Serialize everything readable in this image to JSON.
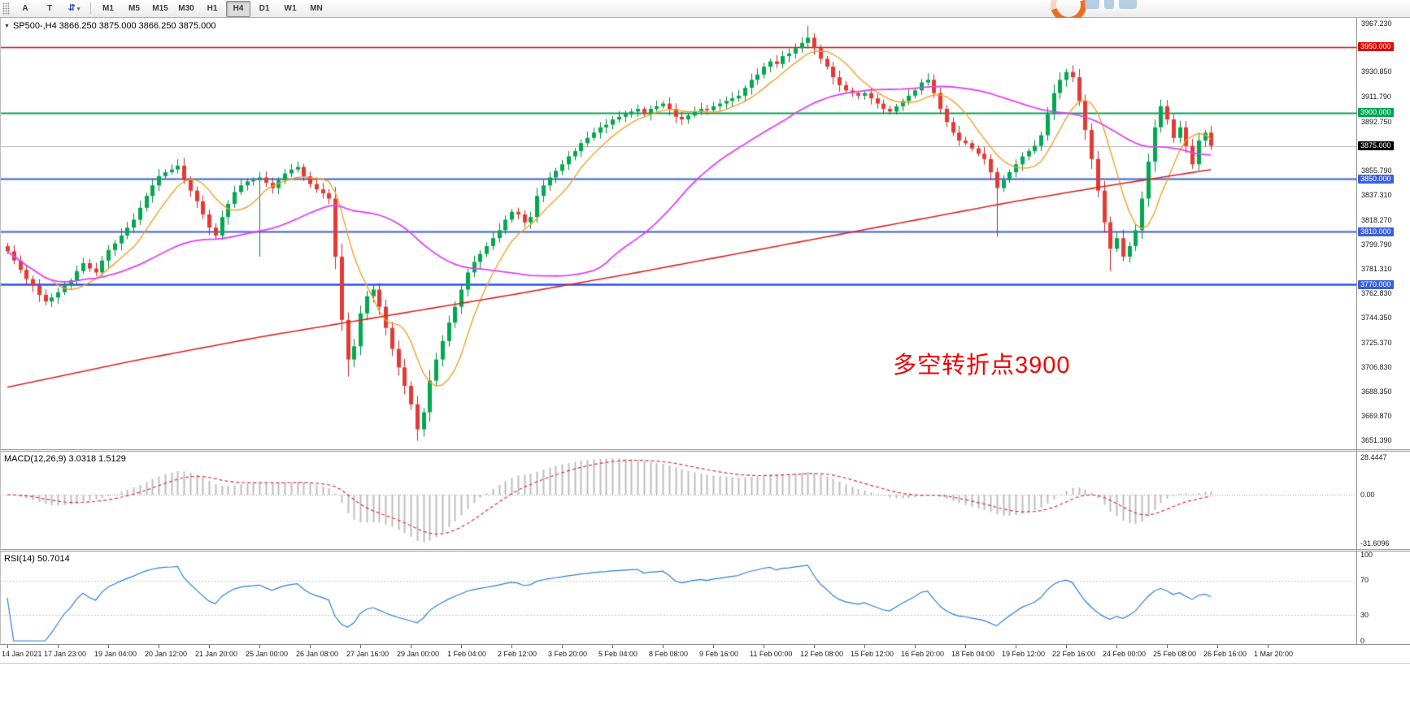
{
  "toolbar": {
    "a_label": "A",
    "t_label": "T",
    "arrows_icon": "⇵",
    "caret_icon": "▾",
    "timeframes": [
      "M1",
      "M5",
      "M15",
      "M30",
      "H1",
      "H4",
      "D1",
      "W1",
      "MN"
    ],
    "active_timeframe": "H4"
  },
  "chart": {
    "marker": "▼",
    "symbol_label": "SP500-,H4  3866.250 3875.000 3866.250 3875.000",
    "annotation": "多空转折点3900",
    "current_price": 3875.0,
    "y_min": 3645,
    "y_max": 3972,
    "price_axis": [
      {
        "t": "3967.230",
        "k": "tick"
      },
      {
        "t": "3950.000",
        "k": "red"
      },
      {
        "t": "3930.850",
        "k": "tick"
      },
      {
        "t": "3911.790",
        "k": "tick"
      },
      {
        "t": "3900.000",
        "k": "green"
      },
      {
        "t": "3892.750",
        "k": "tick"
      },
      {
        "t": "3875.000",
        "k": "black"
      },
      {
        "t": "3855.790",
        "k": "tick"
      },
      {
        "t": "3850.000",
        "k": "blue"
      },
      {
        "t": "3837.310",
        "k": "tick"
      },
      {
        "t": "3818.270",
        "k": "tick"
      },
      {
        "t": "3810.000",
        "k": "blue"
      },
      {
        "t": "3799.790",
        "k": "tick"
      },
      {
        "t": "3781.310",
        "k": "tick"
      },
      {
        "t": "3770.000",
        "k": "blue"
      },
      {
        "t": "3762.830",
        "k": "tick"
      },
      {
        "t": "3744.350",
        "k": "tick"
      },
      {
        "t": "3725.370",
        "k": "tick"
      },
      {
        "t": "3706.830",
        "k": "tick"
      },
      {
        "t": "3688.350",
        "k": "tick"
      },
      {
        "t": "3669.870",
        "k": "tick"
      },
      {
        "t": "3651.390",
        "k": "tick"
      }
    ],
    "levels": [
      {
        "price": 3950.0,
        "color": "#dd0400",
        "width": 1.5
      },
      {
        "price": 3900.0,
        "color": "#00a651",
        "width": 1.8
      },
      {
        "price": 3850.0,
        "color": "#3a5fd9",
        "width": 1.8
      },
      {
        "price": 3810.0,
        "color": "#3a5fd9",
        "width": 1.8
      },
      {
        "price": 3770.0,
        "color": "#2b50e8",
        "width": 2.4
      }
    ]
  },
  "macd": {
    "label": "MACD(12,26,9) 3.0318 1.5129",
    "axis_labels": [
      "28.4447",
      "0.00",
      "-31.6096"
    ]
  },
  "rsi": {
    "label": "RSI(14) 50.7014",
    "axis_labels": [
      "100",
      "70",
      "30",
      "0"
    ],
    "levels": [
      70,
      30
    ]
  },
  "time_axis": [
    "14 Jan 2021",
    "17 Jan 23:00",
    "19 Jan 04:00",
    "20 Jan 12:00",
    "21 Jan 20:00",
    "25 Jan 00:00",
    "26 Jan 08:00",
    "27 Jan 16:00",
    "29 Jan 00:00",
    "1 Feb 04:00",
    "2 Feb 12:00",
    "3 Feb 20:00",
    "5 Feb 04:00",
    "8 Feb 08:00",
    "9 Feb 16:00",
    "11 Feb 00:00",
    "12 Feb 08:00",
    "15 Feb 12:00",
    "16 Feb 20:00",
    "18 Feb 04:00",
    "19 Feb 12:00",
    "22 Feb 16:00",
    "24 Feb 00:00",
    "25 Feb 08:00",
    "26 Feb 16:00",
    "1 Mar 20:00"
  ],
  "chart_data": {
    "type": "candlestick",
    "symbol": "SP500-",
    "timeframe": "H4",
    "ohlc_current": {
      "open": 3866.25,
      "high": 3875.0,
      "low": 3866.25,
      "close": 3875.0
    },
    "closes": [
      3795,
      3788,
      3781,
      3774,
      3769,
      3762,
      3757,
      3760,
      3764,
      3769,
      3773,
      3780,
      3786,
      3782,
      3779,
      3788,
      3796,
      3801,
      3807,
      3813,
      3819,
      3828,
      3837,
      3845,
      3852,
      3855,
      3857,
      3860,
      3849,
      3841,
      3833,
      3823,
      3813,
      3807,
      3821,
      3831,
      3840,
      3845,
      3848,
      3849,
      3851,
      3847,
      3843,
      3849,
      3854,
      3857,
      3859,
      3852,
      3846,
      3842,
      3839,
      3835,
      3791,
      3743,
      3713,
      3723,
      3748,
      3761,
      3766,
      3753,
      3737,
      3721,
      3707,
      3693,
      3679,
      3660,
      3673,
      3697,
      3713,
      3727,
      3741,
      3753,
      3766,
      3779,
      3787,
      3793,
      3799,
      3805,
      3811,
      3819,
      3825,
      3823,
      3817,
      3821,
      3837,
      3845,
      3851,
      3856,
      3861,
      3867,
      3871,
      3877,
      3881,
      3885,
      3889,
      3891,
      3895,
      3897,
      3899,
      3901,
      3903,
      3899,
      3903,
      3905,
      3907,
      3903,
      3897,
      3895,
      3898,
      3901,
      3903,
      3902,
      3905,
      3907,
      3909,
      3911,
      3913,
      3919,
      3925,
      3929,
      3935,
      3939,
      3937,
      3943,
      3945,
      3949,
      3953,
      3957,
      3949,
      3941,
      3935,
      3927,
      3921,
      3917,
      3915,
      3913,
      3915,
      3911,
      3907,
      3903,
      3901,
      3905,
      3909,
      3913,
      3917,
      3923,
      3925,
      3915,
      3903,
      3893,
      3885,
      3879,
      3877,
      3873,
      3869,
      3865,
      3855,
      3843,
      3849,
      3855,
      3861,
      3867,
      3871,
      3875,
      3883,
      3899,
      3915,
      3925,
      3931,
      3927,
      3909,
      3887,
      3865,
      3841,
      3817,
      3797,
      3805,
      3791,
      3799,
      3811,
      3835,
      3863,
      3889,
      3905,
      3895,
      3881,
      3889,
      3875,
      3861,
      3879,
      3885,
      3875
    ],
    "forced_wicks": {
      "27": {
        "high": 3865
      },
      "40": {
        "low": 3791
      },
      "54": {
        "low": 3700
      },
      "65": {
        "low": 3651.4
      },
      "127": {
        "high": 3966
      },
      "146": {
        "high": 3930
      },
      "157": {
        "low": 3806
      },
      "175": {
        "low": 3780
      },
      "183": {
        "high": 3910
      }
    },
    "ma_fast_period": 8,
    "ma_mid_period": 42,
    "ma_slow_points": [
      [
        0,
        3692
      ],
      [
        20,
        3712
      ],
      [
        40,
        3730
      ],
      [
        60,
        3746
      ],
      [
        80,
        3762
      ],
      [
        100,
        3779
      ],
      [
        120,
        3797
      ],
      [
        140,
        3815
      ],
      [
        160,
        3833
      ],
      [
        175,
        3845
      ],
      [
        191,
        3857
      ]
    ],
    "macd_params": {
      "fast": 12,
      "slow": 26,
      "signal": 9
    },
    "rsi_period": 14,
    "horizontal_levels": [
      3950,
      3900,
      3850,
      3810,
      3770
    ],
    "colors": {
      "up": "#00a94f",
      "up_border": "#00893d",
      "down": "#e53935",
      "down_border": "#c62828",
      "ma_fast": "#f0a028",
      "ma_mid": "#e040fb",
      "ma_slow": "#dd2222",
      "macd_hist": "#bdbdbd",
      "macd_signal": "#e03030",
      "rsi_line": "#2a7fde"
    }
  }
}
